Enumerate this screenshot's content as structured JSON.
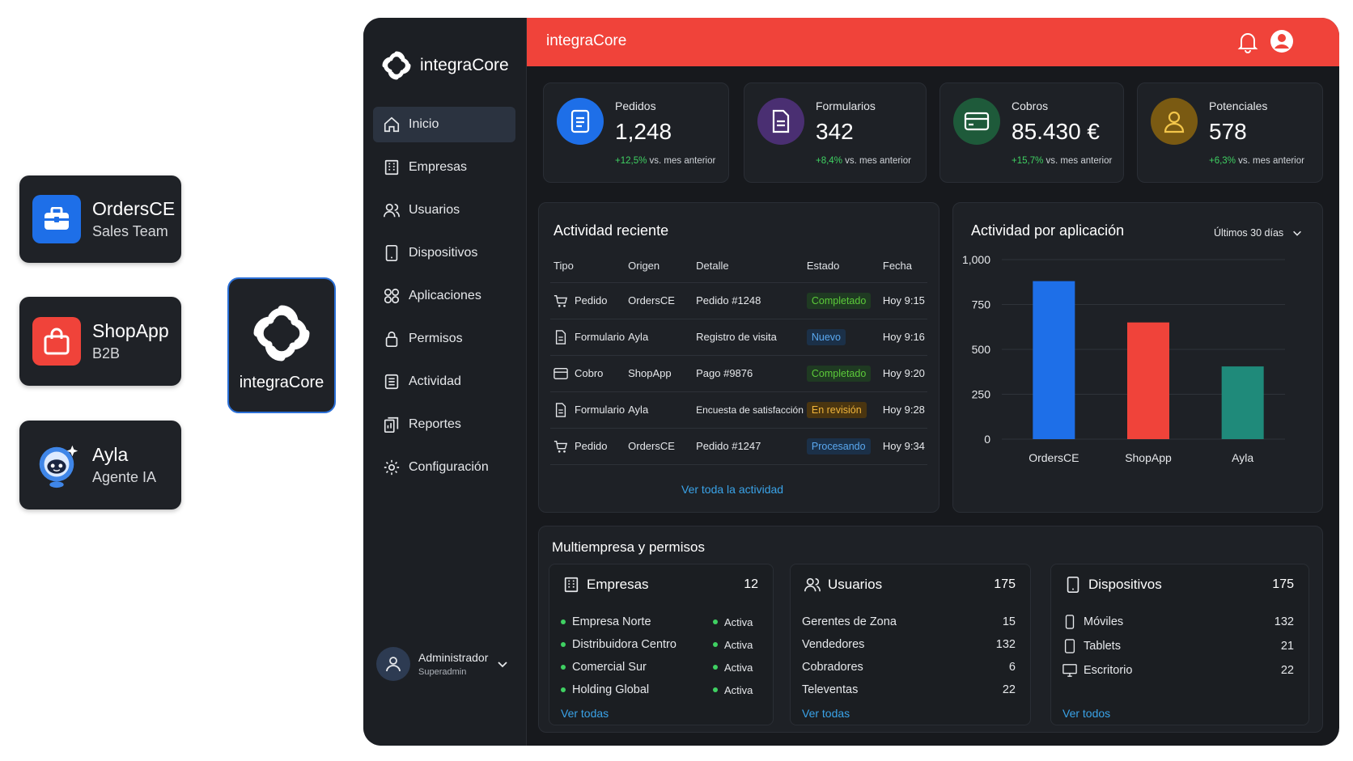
{
  "apps": [
    {
      "name": "OrdersCE",
      "sub": "Sales Team",
      "color": "#1e6fe8"
    },
    {
      "name": "ShopApp",
      "sub": "B2B",
      "color": "#f0433a"
    },
    {
      "name": "Ayla",
      "sub": "Agente IA",
      "color": "#2b6fd6"
    }
  ],
  "logo_card": {
    "label": "integraCore"
  },
  "brand": {
    "name": "integraCore"
  },
  "nav": [
    {
      "label": "Inicio",
      "icon": "home-icon",
      "active": true
    },
    {
      "label": "Empresas",
      "icon": "building-icon"
    },
    {
      "label": "Usuarios",
      "icon": "users-icon"
    },
    {
      "label": "Dispositivos",
      "icon": "tablet-icon"
    },
    {
      "label": "Aplicaciones",
      "icon": "grid-icon"
    },
    {
      "label": "Permisos",
      "icon": "lock-icon"
    },
    {
      "label": "Actividad",
      "icon": "list-icon"
    },
    {
      "label": "Reportes",
      "icon": "report-icon"
    },
    {
      "label": "Configuración",
      "icon": "gear-icon"
    }
  ],
  "user": {
    "name": "Administrador",
    "role": "Superadmin"
  },
  "topbar": {
    "title": "integraCore"
  },
  "stats": [
    {
      "label": "Pedidos",
      "value": "1,248",
      "change": "+12,5%",
      "suffix": "vs. mes anterior",
      "color": "#1e6fe8"
    },
    {
      "label": "Formularios",
      "value": "342",
      "change": "+8,4%",
      "suffix": "vs. mes anterior",
      "color": "#4a2f72"
    },
    {
      "label": "Cobros",
      "value": "85.430 €",
      "change": "+15,7%",
      "suffix": "vs. mes anterior",
      "color": "#1e5a3a"
    },
    {
      "label": "Potenciales",
      "value": "578",
      "change": "+6,3%",
      "suffix": "vs. mes anterior",
      "color": "#7a5a12"
    }
  ],
  "activity": {
    "title": "Actividad reciente",
    "columns": [
      "Tipo",
      "Origen",
      "Detalle",
      "Estado",
      "Fecha"
    ],
    "rows": [
      {
        "tipo": "Pedido",
        "icon": "cart-icon",
        "origen": "OrdersCE",
        "detalle": "Pedido #1248",
        "estado": "Completado",
        "estado_color": "#5ccb3a",
        "estado_bg": "#1f3a22",
        "fecha": "Hoy 9:15"
      },
      {
        "tipo": "Formulario",
        "icon": "document-icon",
        "origen": "Ayla",
        "detalle": "Registro de visita",
        "estado": "Nuevo",
        "estado_color": "#5aa8f0",
        "estado_bg": "#1b3048",
        "fecha": "Hoy 9:16"
      },
      {
        "tipo": "Cobro",
        "icon": "card-icon",
        "origen": "ShopApp",
        "detalle": "Pago #9876",
        "estado": "Completado",
        "estado_color": "#5ccb3a",
        "estado_bg": "#1f3a22",
        "fecha": "Hoy 9:20"
      },
      {
        "tipo": "Formulario",
        "icon": "document-icon",
        "origen": "Ayla",
        "detalle": "Encuesta de satisfacción",
        "estado": "En revisión",
        "estado_color": "#f0b43a",
        "estado_bg": "#4a3510",
        "fecha": "Hoy 9:28"
      },
      {
        "tipo": "Pedido",
        "icon": "cart-icon",
        "origen": "OrdersCE",
        "detalle": "Pedido #1247",
        "estado": "Procesando",
        "estado_color": "#5aa8f0",
        "estado_bg": "#1b3048",
        "fecha": "Hoy 9:34"
      }
    ],
    "link": "Ver toda la actividad"
  },
  "chart_title": "Actividad por aplicación",
  "range_select": "Últimos 30 días",
  "chart_data": {
    "type": "bar",
    "categories": [
      "OrdersCE",
      "ShopApp",
      "Ayla"
    ],
    "values": [
      880,
      650,
      405
    ],
    "colors": [
      "#1e6fe8",
      "#f0433a",
      "#1f8a7a"
    ],
    "yticks": [
      "0",
      "250",
      "500",
      "750",
      "1,000"
    ],
    "ylim": [
      0,
      1000
    ],
    "grid": true
  },
  "multi": {
    "title": "Multiempresa y permisos",
    "empresas": {
      "title": "Empresas",
      "count": "12",
      "items": [
        {
          "name": "Empresa Norte",
          "status": "Activa"
        },
        {
          "name": "Distribuidora Centro",
          "status": "Activa"
        },
        {
          "name": "Comercial Sur",
          "status": "Activa"
        },
        {
          "name": "Holding Global",
          "status": "Activa"
        }
      ],
      "link": "Ver todas"
    },
    "usuarios": {
      "title": "Usuarios",
      "count": "175",
      "items": [
        {
          "name": "Gerentes de Zona",
          "value": "15"
        },
        {
          "name": "Vendedores",
          "value": "132"
        },
        {
          "name": "Cobradores",
          "value": "6"
        },
        {
          "name": "Televentas",
          "value": "22"
        }
      ],
      "link": "Ver todas"
    },
    "dispositivos": {
      "title": "Dispositivos",
      "count": "175",
      "items": [
        {
          "name": "Móviles",
          "value": "132",
          "icon": "phone-icon"
        },
        {
          "name": "Tablets",
          "value": "21",
          "icon": "tablet-icon"
        },
        {
          "name": "Escritorio",
          "value": "22",
          "icon": "monitor-icon"
        }
      ],
      "link": "Ver todos"
    }
  }
}
